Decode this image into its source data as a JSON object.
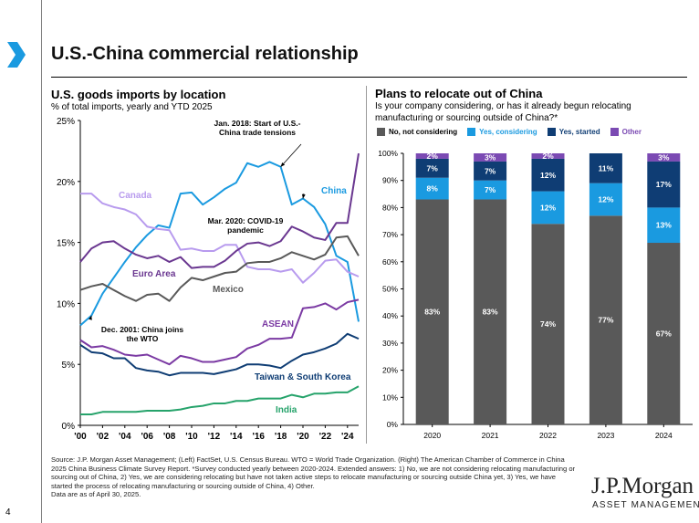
{
  "page": {
    "title": "U.S.-China commercial relationship",
    "page_number": "4",
    "source_text": "Source: J.P. Morgan Asset Management; (Left) FactSet, U.S. Census Bureau. WTO = World Trade Organization. (Right) The American Chamber of Commerce in China 2025 China Business Climate Survey Report. *Survey conducted yearly between 2020-2024. Extended answers: 1) No, we are not considering relocating manufacturing or sourcing out of China, 2) Yes, we are considering relocating but have not taken active steps to relocate manufacturing or sourcing outside China yet, 3) Yes, we have started the process of relocating manufacturing or sourcing outside of China, 4) Other.",
    "data_date": "Data are as of April 30, 2025.",
    "logo_main": "J.P.Morgan",
    "logo_sub": "ASSET MANAGEMENT"
  },
  "chart_data": [
    {
      "type": "line",
      "title": "U.S. goods imports by location",
      "subtitle": "% of total imports, yearly and YTD 2025",
      "xlabel": "",
      "ylabel": "% of total imports",
      "ylim": [
        0,
        25
      ],
      "yticks": [
        "0%",
        "5%",
        "10%",
        "15%",
        "20%",
        "25%"
      ],
      "xticks": [
        "'00",
        "'02",
        "'04",
        "'06",
        "'08",
        "'10",
        "'12",
        "'14",
        "'16",
        "'18",
        "'20",
        "'22",
        "'24"
      ],
      "x": [
        2000,
        2001,
        2002,
        2003,
        2004,
        2005,
        2006,
        2007,
        2008,
        2009,
        2010,
        2011,
        2012,
        2013,
        2014,
        2015,
        2016,
        2017,
        2018,
        2019,
        2020,
        2021,
        2022,
        2023,
        2024,
        2025
      ],
      "series": [
        {
          "name": "China",
          "color": "#1a9ae0",
          "values": [
            8.2,
            9.0,
            10.8,
            12.1,
            13.4,
            14.6,
            15.6,
            16.4,
            16.2,
            19.0,
            19.1,
            18.1,
            18.7,
            19.4,
            19.9,
            21.5,
            21.2,
            21.6,
            21.2,
            18.1,
            18.6,
            17.9,
            16.5,
            13.9,
            13.4,
            8.5
          ]
        },
        {
          "name": "Canada",
          "color": "#b89bee",
          "values": [
            19.0,
            19.0,
            18.2,
            17.9,
            17.7,
            17.3,
            16.3,
            16.1,
            16.0,
            14.4,
            14.5,
            14.3,
            14.3,
            14.8,
            14.8,
            13.0,
            12.8,
            12.8,
            12.6,
            12.8,
            11.7,
            12.5,
            13.5,
            13.6,
            12.6,
            12.2
          ]
        },
        {
          "name": "Euro Area",
          "color": "#6a3790",
          "values": [
            13.4,
            14.5,
            15.0,
            15.1,
            14.5,
            14.0,
            13.7,
            13.9,
            13.4,
            13.8,
            12.9,
            13.0,
            13.0,
            13.5,
            14.3,
            14.9,
            15.0,
            14.7,
            15.1,
            16.3,
            15.9,
            15.4,
            15.2,
            16.6,
            16.6,
            22.3
          ]
        },
        {
          "name": "Mexico",
          "color": "#595959",
          "values": [
            11.1,
            11.4,
            11.6,
            11.1,
            10.6,
            10.2,
            10.7,
            10.8,
            10.2,
            11.3,
            12.1,
            11.9,
            12.2,
            12.5,
            12.6,
            13.3,
            13.4,
            13.4,
            13.7,
            14.2,
            13.9,
            13.6,
            14.0,
            15.4,
            15.5,
            13.9
          ]
        },
        {
          "name": "ASEAN",
          "color": "#7b3aa3",
          "values": [
            7.0,
            6.4,
            6.5,
            6.2,
            5.8,
            5.7,
            5.8,
            5.4,
            5.0,
            5.7,
            5.5,
            5.2,
            5.2,
            5.4,
            5.6,
            6.3,
            6.6,
            7.1,
            7.1,
            7.2,
            9.6,
            9.7,
            10.0,
            9.5,
            10.1,
            10.3
          ]
        },
        {
          "name": "Taiwan & South Korea",
          "color": "#0f3d74",
          "values": [
            6.6,
            6.0,
            5.9,
            5.5,
            5.5,
            4.7,
            4.5,
            4.4,
            4.1,
            4.3,
            4.3,
            4.3,
            4.2,
            4.4,
            4.6,
            5.0,
            5.0,
            4.9,
            4.7,
            5.3,
            5.8,
            6.0,
            6.3,
            6.7,
            7.5,
            7.1
          ]
        },
        {
          "name": "India",
          "color": "#26a36b",
          "values": [
            0.9,
            0.9,
            1.1,
            1.1,
            1.1,
            1.1,
            1.2,
            1.2,
            1.2,
            1.3,
            1.5,
            1.6,
            1.8,
            1.8,
            2.0,
            2.0,
            2.2,
            2.2,
            2.2,
            2.5,
            2.3,
            2.6,
            2.6,
            2.7,
            2.7,
            3.2
          ]
        }
      ],
      "annotations": [
        {
          "text_lines": [
            "Jan. 2018: Start of U.S.-",
            "China trade tensions"
          ],
          "x": 2018,
          "y": 21.2
        },
        {
          "text_lines": [
            "Mar. 2020: COVID-19",
            "pandemic"
          ],
          "x": 2020,
          "y": 18.6
        },
        {
          "text_lines": [
            "Dec. 2001: China joins",
            "the WTO"
          ],
          "x": 2001,
          "y": 9.0
        }
      ]
    },
    {
      "type": "bar",
      "stacked": true,
      "title": "Plans to relocate out of China",
      "subtitle": "Is your company considering, or has it already begun relocating manufacturing or sourcing outside of China?*",
      "categories": [
        "2020",
        "2021",
        "2022",
        "2023",
        "2024"
      ],
      "ylim": [
        0,
        100
      ],
      "yticks": [
        "0%",
        "10%",
        "20%",
        "30%",
        "40%",
        "50%",
        "60%",
        "70%",
        "80%",
        "90%",
        "100%"
      ],
      "series": [
        {
          "name": "No, not considering",
          "color": "#595959",
          "values": [
            83,
            83,
            74,
            77,
            67
          ],
          "labels": [
            "83%",
            "83%",
            "74%",
            "77%",
            "67%"
          ]
        },
        {
          "name": "Yes, considering",
          "color": "#1a9ae0",
          "values": [
            8,
            7,
            12,
            12,
            13
          ],
          "labels": [
            "8%",
            "7%",
            "12%",
            "12%",
            "13%"
          ]
        },
        {
          "name": "Yes, started",
          "color": "#0f3d74",
          "values": [
            7,
            7,
            12,
            11,
            17
          ],
          "labels": [
            "7%",
            "7%",
            "12%",
            "11%",
            "17%"
          ]
        },
        {
          "name": "Other",
          "color": "#7b4ab3",
          "values": [
            2,
            3,
            2,
            0,
            3
          ],
          "labels": [
            "2%",
            "3%",
            "2%",
            "",
            "3%"
          ]
        }
      ]
    }
  ]
}
